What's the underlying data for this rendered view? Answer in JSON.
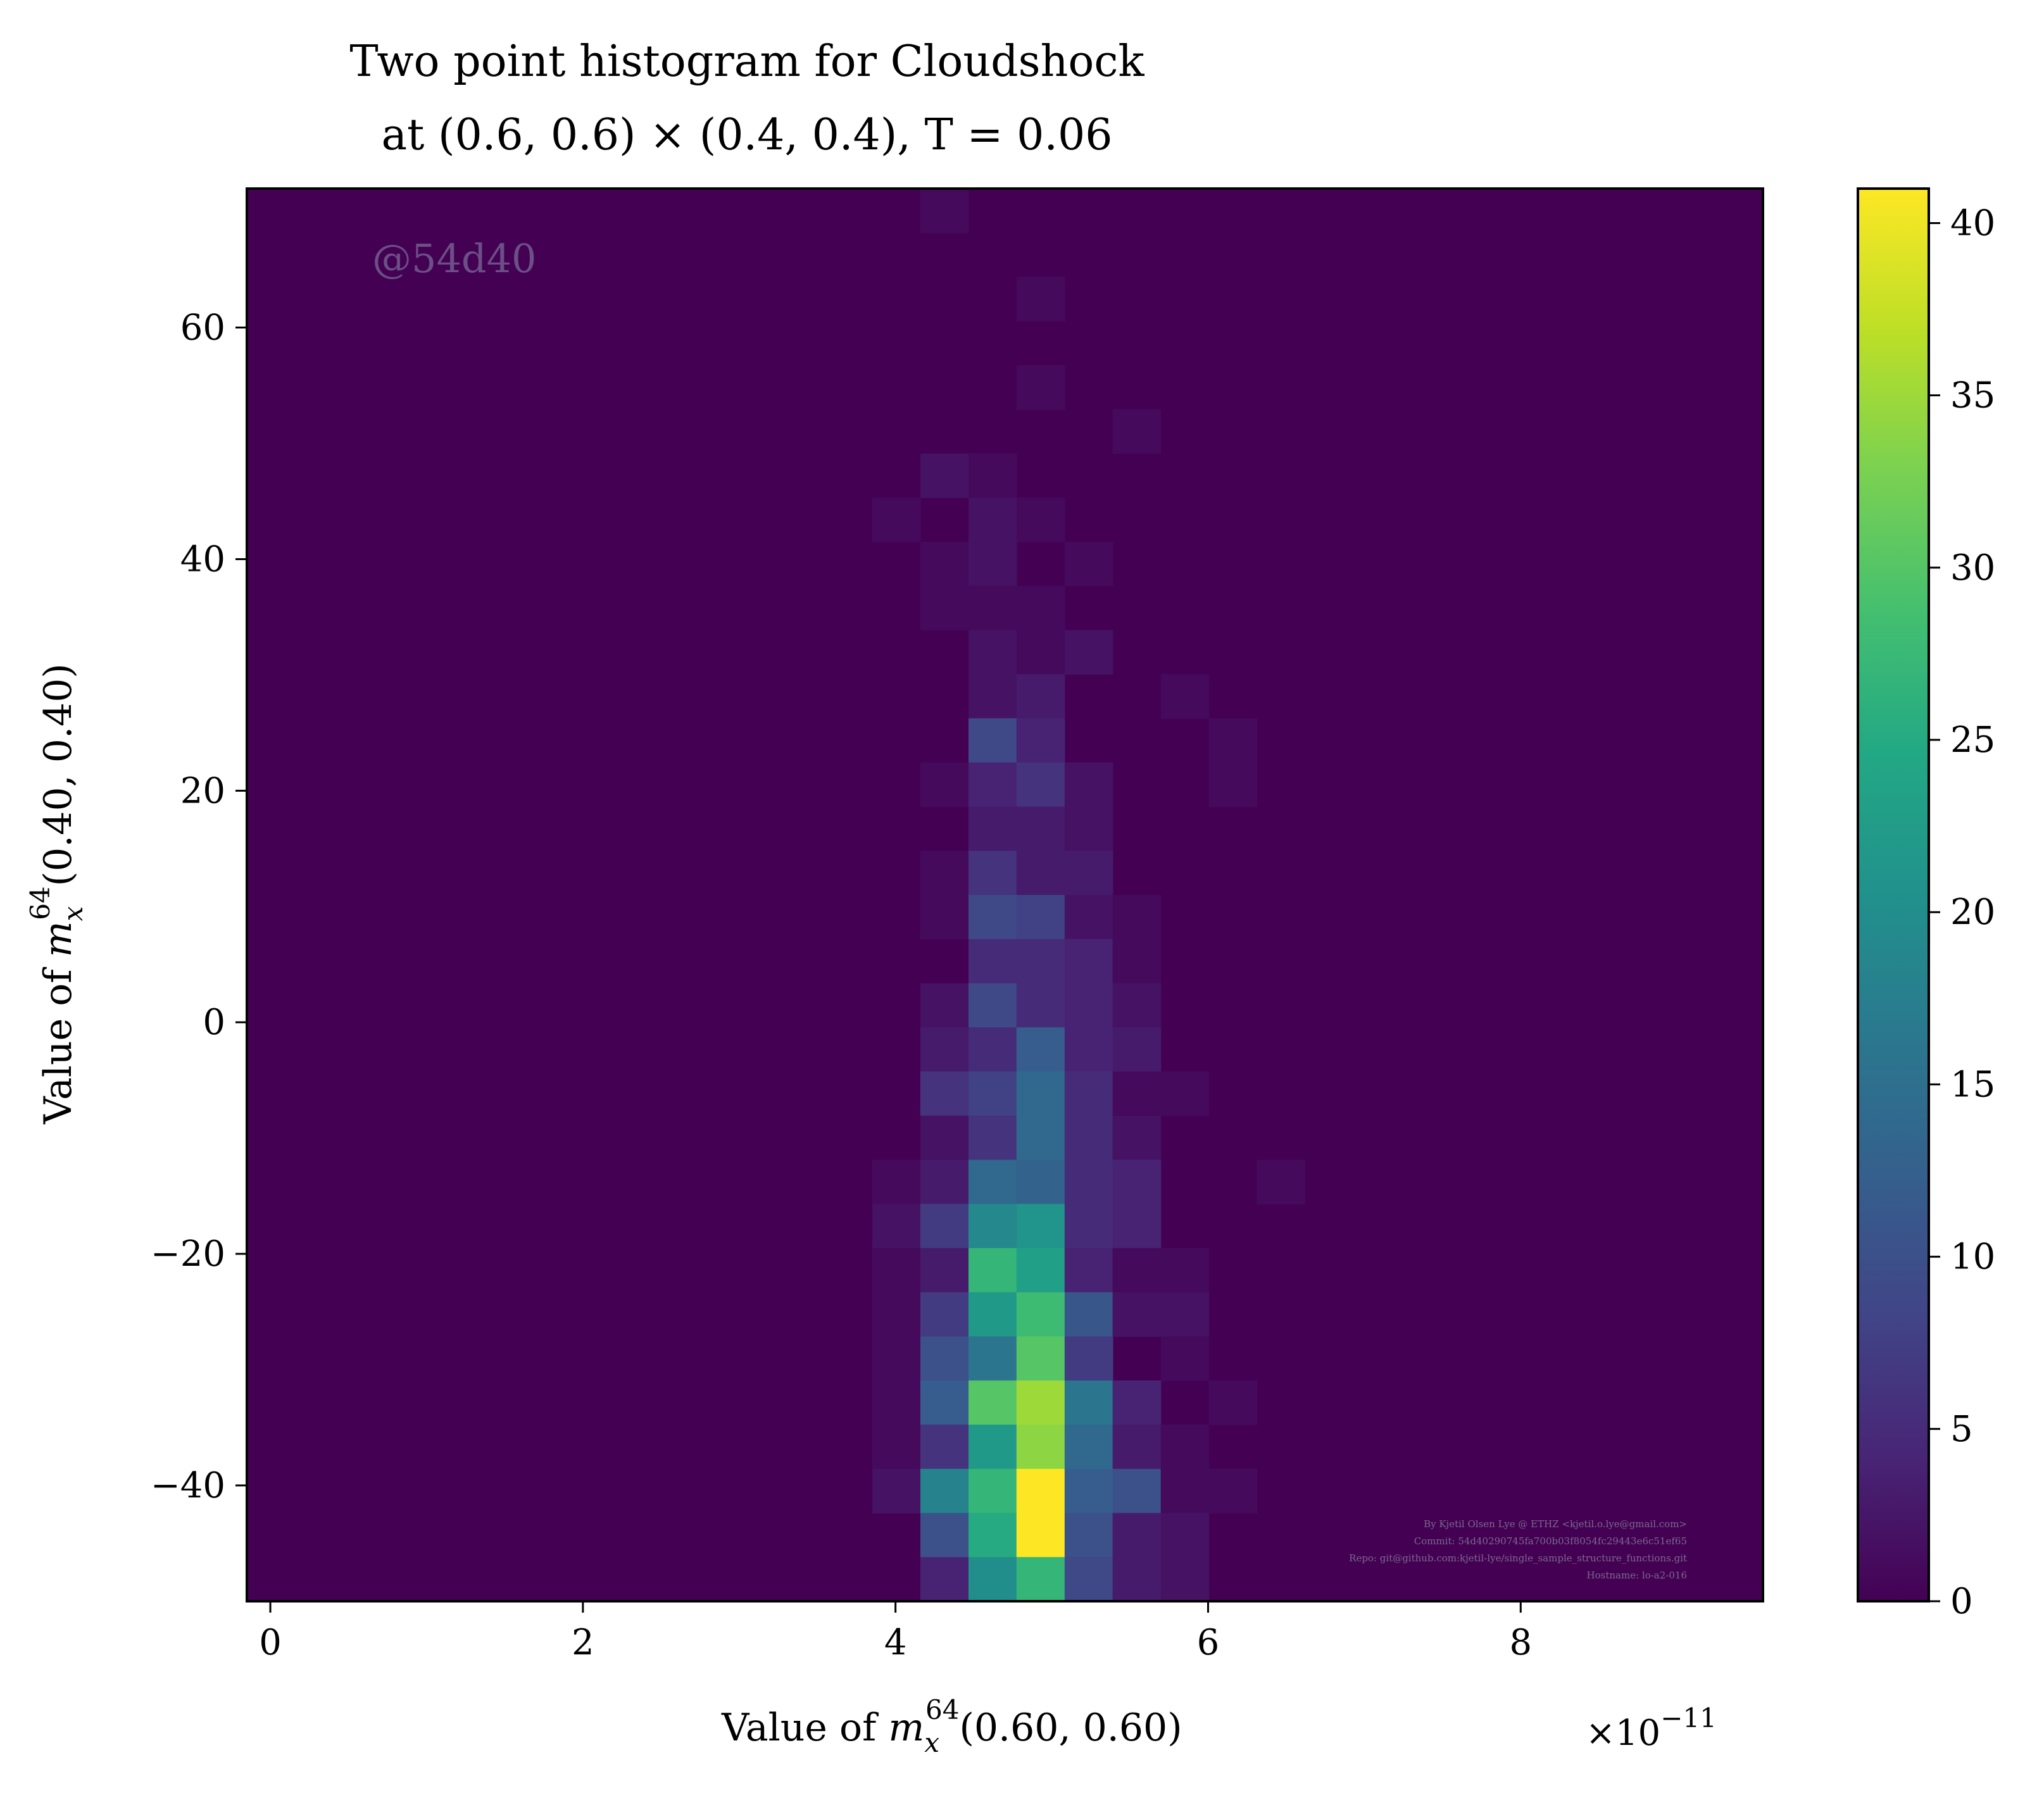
{
  "chart_data": {
    "type": "heatmap",
    "title_lines": [
      "Two point histogram for Cloudshock",
      "at (0.6, 0.6) × (0.4, 0.4), T = 0.06"
    ],
    "xlabel": "Value of m_x^64(0.60, 0.60)",
    "xlabel_parts": {
      "lead": "Value of ",
      "m": "m",
      "sub": "x",
      "sup": "64",
      "tail": "(0.60, 0.60)"
    },
    "ylabel": "Value of m_x^64(0.40, 0.40)",
    "ylabel_parts": {
      "lead": "Value of ",
      "m": "m",
      "sub": "x",
      "sup": "64",
      "tail": "(0.40, 0.40)"
    },
    "x_multiplier": "×10⁻¹¹",
    "x_multiplier_parts": {
      "base": "×10",
      "exp": "−11"
    },
    "xlim": [
      -0.15,
      9.55
    ],
    "ylim": [
      -50,
      72
    ],
    "x_ticks": [
      0,
      2,
      4,
      6,
      8
    ],
    "x_tick_labels": [
      "0",
      "2",
      "4",
      "6",
      "8"
    ],
    "y_ticks": [
      -40,
      -20,
      0,
      20,
      40,
      60
    ],
    "y_tick_labels": [
      "−40",
      "−20",
      "0",
      "20",
      "40",
      "60"
    ],
    "colorbar": {
      "colormap": "viridis",
      "range": [
        0,
        41
      ],
      "ticks": [
        0,
        5,
        10,
        15,
        20,
        25,
        30,
        35,
        40
      ],
      "tick_labels": [
        "0",
        "5",
        "10",
        "15",
        "20",
        "25",
        "30",
        "35",
        "40"
      ]
    },
    "grid": false,
    "bin_width_x": 0.3077,
    "bin_width_y": 3.8125,
    "bins": [
      {
        "x": 4.159,
        "y": 68.19,
        "count": 1
      },
      {
        "x": 4.774,
        "y": 60.56,
        "count": 1
      },
      {
        "x": 4.774,
        "y": 52.94,
        "count": 1
      },
      {
        "x": 5.389,
        "y": 49.13,
        "count": 1
      },
      {
        "x": 4.159,
        "y": 45.31,
        "count": 2
      },
      {
        "x": 4.467,
        "y": 45.31,
        "count": 1
      },
      {
        "x": 3.851,
        "y": 41.5,
        "count": 1
      },
      {
        "x": 4.467,
        "y": 41.5,
        "count": 2
      },
      {
        "x": 4.774,
        "y": 41.5,
        "count": 1
      },
      {
        "x": 4.159,
        "y": 37.69,
        "count": 1
      },
      {
        "x": 4.467,
        "y": 37.69,
        "count": 2
      },
      {
        "x": 5.082,
        "y": 37.69,
        "count": 1
      },
      {
        "x": 4.159,
        "y": 33.88,
        "count": 1
      },
      {
        "x": 4.467,
        "y": 33.88,
        "count": 1
      },
      {
        "x": 4.774,
        "y": 33.88,
        "count": 1
      },
      {
        "x": 4.467,
        "y": 30.06,
        "count": 2
      },
      {
        "x": 4.774,
        "y": 30.06,
        "count": 1
      },
      {
        "x": 5.082,
        "y": 30.06,
        "count": 2
      },
      {
        "x": 4.467,
        "y": 26.25,
        "count": 2
      },
      {
        "x": 4.774,
        "y": 26.25,
        "count": 3
      },
      {
        "x": 5.697,
        "y": 26.25,
        "count": 1
      },
      {
        "x": 4.467,
        "y": 22.44,
        "count": 9
      },
      {
        "x": 4.774,
        "y": 22.44,
        "count": 4
      },
      {
        "x": 6.005,
        "y": 22.44,
        "count": 1
      },
      {
        "x": 4.159,
        "y": 18.63,
        "count": 1
      },
      {
        "x": 4.467,
        "y": 18.63,
        "count": 4
      },
      {
        "x": 4.774,
        "y": 18.63,
        "count": 6
      },
      {
        "x": 5.082,
        "y": 18.63,
        "count": 2
      },
      {
        "x": 6.005,
        "y": 18.63,
        "count": 1
      },
      {
        "x": 4.467,
        "y": 14.81,
        "count": 3
      },
      {
        "x": 4.774,
        "y": 14.81,
        "count": 3
      },
      {
        "x": 5.082,
        "y": 14.81,
        "count": 2
      },
      {
        "x": 4.159,
        "y": 11.0,
        "count": 1
      },
      {
        "x": 4.467,
        "y": 11.0,
        "count": 6
      },
      {
        "x": 4.774,
        "y": 11.0,
        "count": 3
      },
      {
        "x": 5.082,
        "y": 11.0,
        "count": 3
      },
      {
        "x": 4.159,
        "y": 7.19,
        "count": 1
      },
      {
        "x": 4.467,
        "y": 7.19,
        "count": 9
      },
      {
        "x": 4.774,
        "y": 7.19,
        "count": 8
      },
      {
        "x": 5.082,
        "y": 7.19,
        "count": 2
      },
      {
        "x": 5.389,
        "y": 7.19,
        "count": 1
      },
      {
        "x": 4.467,
        "y": 3.38,
        "count": 5
      },
      {
        "x": 4.774,
        "y": 3.38,
        "count": 5
      },
      {
        "x": 5.082,
        "y": 3.38,
        "count": 4
      },
      {
        "x": 5.389,
        "y": 3.38,
        "count": 1
      },
      {
        "x": 4.159,
        "y": -0.44,
        "count": 2
      },
      {
        "x": 4.467,
        "y": -0.44,
        "count": 9
      },
      {
        "x": 4.774,
        "y": -0.44,
        "count": 5
      },
      {
        "x": 5.082,
        "y": -0.44,
        "count": 4
      },
      {
        "x": 5.389,
        "y": -0.44,
        "count": 2
      },
      {
        "x": 4.159,
        "y": -4.25,
        "count": 3
      },
      {
        "x": 4.467,
        "y": -4.25,
        "count": 5
      },
      {
        "x": 4.774,
        "y": -4.25,
        "count": 12
      },
      {
        "x": 5.082,
        "y": -4.25,
        "count": 4
      },
      {
        "x": 5.389,
        "y": -4.25,
        "count": 3
      },
      {
        "x": 4.159,
        "y": -8.06,
        "count": 6
      },
      {
        "x": 4.467,
        "y": -8.06,
        "count": 8
      },
      {
        "x": 4.774,
        "y": -8.06,
        "count": 14
      },
      {
        "x": 5.082,
        "y": -8.06,
        "count": 5
      },
      {
        "x": 5.389,
        "y": -8.06,
        "count": 1
      },
      {
        "x": 5.697,
        "y": -8.06,
        "count": 1
      },
      {
        "x": 4.159,
        "y": -11.88,
        "count": 2
      },
      {
        "x": 4.467,
        "y": -11.88,
        "count": 6
      },
      {
        "x": 4.774,
        "y": -11.88,
        "count": 14
      },
      {
        "x": 5.082,
        "y": -11.88,
        "count": 5
      },
      {
        "x": 5.389,
        "y": -11.88,
        "count": 2
      },
      {
        "x": 3.851,
        "y": -15.69,
        "count": 1
      },
      {
        "x": 4.159,
        "y": -15.69,
        "count": 3
      },
      {
        "x": 4.467,
        "y": -15.69,
        "count": 14
      },
      {
        "x": 4.774,
        "y": -15.69,
        "count": 13
      },
      {
        "x": 5.082,
        "y": -15.69,
        "count": 5
      },
      {
        "x": 5.389,
        "y": -15.69,
        "count": 4
      },
      {
        "x": 6.312,
        "y": -15.69,
        "count": 1
      },
      {
        "x": 3.851,
        "y": -19.5,
        "count": 2
      },
      {
        "x": 4.159,
        "y": -19.5,
        "count": 7
      },
      {
        "x": 4.467,
        "y": -19.5,
        "count": 19
      },
      {
        "x": 4.774,
        "y": -19.5,
        "count": 21
      },
      {
        "x": 5.082,
        "y": -19.5,
        "count": 5
      },
      {
        "x": 5.389,
        "y": -19.5,
        "count": 4
      },
      {
        "x": 3.851,
        "y": -23.31,
        "count": 1
      },
      {
        "x": 4.159,
        "y": -23.31,
        "count": 3
      },
      {
        "x": 4.467,
        "y": -23.31,
        "count": 27
      },
      {
        "x": 4.774,
        "y": -23.31,
        "count": 23
      },
      {
        "x": 5.082,
        "y": -23.31,
        "count": 4
      },
      {
        "x": 5.389,
        "y": -23.31,
        "count": 1
      },
      {
        "x": 5.697,
        "y": -23.31,
        "count": 1
      },
      {
        "x": 3.851,
        "y": -27.13,
        "count": 1
      },
      {
        "x": 4.159,
        "y": -27.13,
        "count": 7
      },
      {
        "x": 4.467,
        "y": -27.13,
        "count": 22
      },
      {
        "x": 4.774,
        "y": -27.13,
        "count": 28
      },
      {
        "x": 5.082,
        "y": -27.13,
        "count": 11
      },
      {
        "x": 5.389,
        "y": -27.13,
        "count": 2
      },
      {
        "x": 5.697,
        "y": -27.13,
        "count": 2
      },
      {
        "x": 3.851,
        "y": -30.94,
        "count": 1
      },
      {
        "x": 4.159,
        "y": -30.94,
        "count": 10
      },
      {
        "x": 4.467,
        "y": -30.94,
        "count": 16
      },
      {
        "x": 4.774,
        "y": -30.94,
        "count": 30
      },
      {
        "x": 5.082,
        "y": -30.94,
        "count": 7
      },
      {
        "x": 5.697,
        "y": -30.94,
        "count": 1
      },
      {
        "x": 3.851,
        "y": -34.75,
        "count": 1
      },
      {
        "x": 4.159,
        "y": -34.75,
        "count": 12
      },
      {
        "x": 4.467,
        "y": -34.75,
        "count": 30
      },
      {
        "x": 4.774,
        "y": -34.75,
        "count": 35
      },
      {
        "x": 5.082,
        "y": -34.75,
        "count": 16
      },
      {
        "x": 5.389,
        "y": -34.75,
        "count": 4
      },
      {
        "x": 6.005,
        "y": -34.75,
        "count": 1
      },
      {
        "x": 3.851,
        "y": -38.56,
        "count": 1
      },
      {
        "x": 4.159,
        "y": -38.56,
        "count": 6
      },
      {
        "x": 4.467,
        "y": -38.56,
        "count": 22
      },
      {
        "x": 4.774,
        "y": -38.56,
        "count": 34
      },
      {
        "x": 5.082,
        "y": -38.56,
        "count": 14
      },
      {
        "x": 5.389,
        "y": -38.56,
        "count": 3
      },
      {
        "x": 5.697,
        "y": -38.56,
        "count": 1
      },
      {
        "x": 3.851,
        "y": -42.38,
        "count": 2
      },
      {
        "x": 4.159,
        "y": -42.38,
        "count": 18
      },
      {
        "x": 4.467,
        "y": -42.38,
        "count": 27
      },
      {
        "x": 4.774,
        "y": -42.38,
        "count": 41
      },
      {
        "x": 5.082,
        "y": -42.38,
        "count": 12
      },
      {
        "x": 5.389,
        "y": -42.38,
        "count": 10
      },
      {
        "x": 5.697,
        "y": -42.38,
        "count": 1
      },
      {
        "x": 6.005,
        "y": -42.38,
        "count": 1
      },
      {
        "x": 4.159,
        "y": -46.19,
        "count": 10
      },
      {
        "x": 4.467,
        "y": -46.19,
        "count": 25
      },
      {
        "x": 4.774,
        "y": -46.19,
        "count": 41
      },
      {
        "x": 5.082,
        "y": -46.19,
        "count": 10
      },
      {
        "x": 5.389,
        "y": -46.19,
        "count": 3
      },
      {
        "x": 5.697,
        "y": -46.19,
        "count": 2
      },
      {
        "x": 4.159,
        "y": -50.0,
        "count": 4
      },
      {
        "x": 4.467,
        "y": -50.0,
        "count": 20
      },
      {
        "x": 4.774,
        "y": -50.0,
        "count": 27
      },
      {
        "x": 5.082,
        "y": -50.0,
        "count": 9
      },
      {
        "x": 5.389,
        "y": -50.0,
        "count": 3
      },
      {
        "x": 5.697,
        "y": -50.0,
        "count": 2
      }
    ],
    "watermark": "@54d40",
    "credits": [
      "By Kjetil Olsen Lye @ ETHZ <kjetil.o.lye@gmail.com>",
      "Commit: 54d40290745fa700b03f8054fc29443e6c51ef65",
      "Repo: git@github.com:kjetil-lye/single_sample_structure_functions.git",
      "Hostname: lo-a2-016"
    ]
  }
}
